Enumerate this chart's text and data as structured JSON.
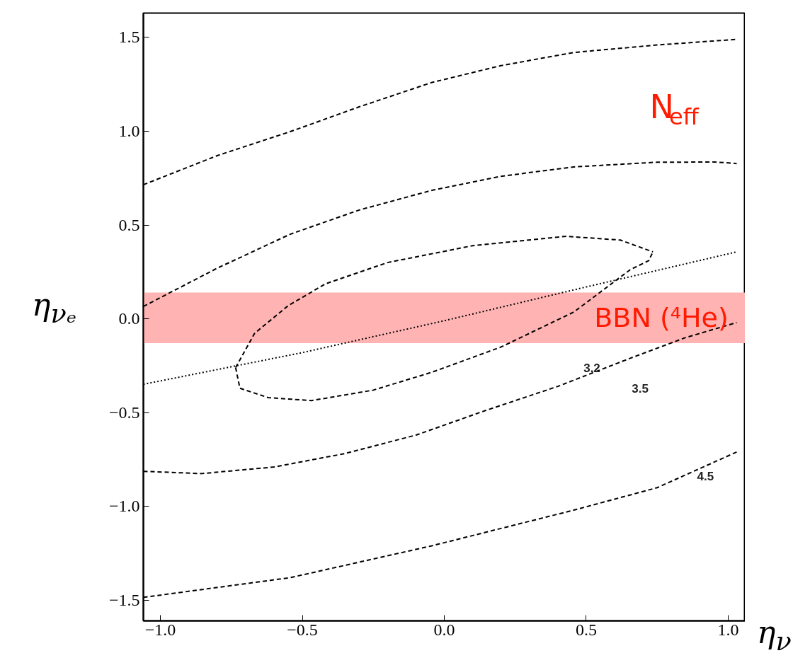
{
  "chart_data": {
    "type": "line",
    "xlabel": "η$_{ν}$",
    "ylabel": "η$_{νₑ}$",
    "xlim": [
      -1.06,
      1.06
    ],
    "ylim": [
      -1.61,
      1.63
    ],
    "xticks": [
      {
        "value": -1.0,
        "label": "−1.0"
      },
      {
        "value": -0.5,
        "label": "−0.5"
      },
      {
        "value": 0,
        "label": "0.0"
      },
      {
        "value": 0.5,
        "label": "0.5"
      },
      {
        "value": 1.0,
        "label": "1.0"
      }
    ],
    "yticks": [
      {
        "value": -1.5,
        "label": "−1.5"
      },
      {
        "value": -1.0,
        "label": "−1.0"
      },
      {
        "value": -0.5,
        "label": "−0.5"
      },
      {
        "value": 0,
        "label": "0.0"
      },
      {
        "value": 0.5,
        "label": "0.5"
      },
      {
        "value": 1.0,
        "label": "1.0"
      },
      {
        "value": 1.5,
        "label": "1.5"
      }
    ],
    "grid": false,
    "line_style": "dashed",
    "marker": "none",
    "series": [
      {
        "color": "#000000",
        "x": [
          -1.06,
          -0.8,
          -0.543,
          -0.3,
          -0.044,
          0.2,
          0.456,
          0.75,
          1.03
        ],
        "values": [
          0.715,
          0.87,
          0.998,
          1.13,
          1.26,
          1.35,
          1.42,
          1.46,
          1.49
        ]
      },
      {
        "color": "#000000",
        "x": [
          -1.06,
          -0.8,
          -0.543,
          -0.3,
          -0.044,
          0.2,
          0.456,
          0.75,
          0.955,
          1.03
        ],
        "values": [
          0.066,
          0.27,
          0.451,
          0.58,
          0.685,
          0.76,
          0.81,
          0.835,
          0.836,
          0.828
        ]
      },
      {
        "color": "#000000",
        "x": [
          -0.735,
          -0.668,
          -0.55,
          -0.418,
          -0.2,
          0.1,
          0.43,
          0.62,
          0.735
        ],
        "values": [
          -0.26,
          -0.077,
          0.07,
          0.187,
          0.3,
          0.39,
          0.44,
          0.42,
          0.357
        ]
      },
      {
        "color": "#000000",
        "x": [
          -0.735,
          -0.72,
          -0.62,
          -0.468,
          -0.25,
          -0.044,
          0.2,
          0.456,
          0.655,
          0.72,
          0.735
        ],
        "values": [
          -0.26,
          -0.37,
          -0.42,
          -0.436,
          -0.38,
          -0.285,
          -0.15,
          0.036,
          0.262,
          0.31,
          0.357
        ]
      },
      {
        "color": "#000000",
        "line_style": "dotted",
        "x": [
          -1.06,
          -0.5,
          0.0,
          0.5,
          1.03
        ],
        "values": [
          -0.349,
          -0.18,
          -0.01,
          0.17,
          0.357
        ]
      },
      {
        "color": "#000000",
        "x": [
          -1.06,
          -0.855,
          -0.6,
          -0.356,
          -0.1,
          0.143,
          0.4,
          0.655,
          0.85,
          1.03
        ],
        "values": [
          -0.813,
          -0.825,
          -0.79,
          -0.72,
          -0.62,
          -0.49,
          -0.36,
          -0.21,
          -0.1,
          -0.02
        ]
      },
      {
        "color": "#000000",
        "x": [
          -1.06,
          -0.543,
          -0.044,
          0.456,
          0.75,
          1.03
        ],
        "values": [
          -1.485,
          -1.38,
          -1.21,
          -1.02,
          -0.9,
          -0.71
        ]
      }
    ],
    "bands": [
      {
        "axis": "y",
        "from": -0.13,
        "to": 0.14,
        "label": "BBN (⁴He)",
        "color": "#ffb3b3"
      }
    ],
    "annotations": [
      "3.2",
      "3.5",
      "4.5",
      "N$_{eff}$"
    ]
  }
}
